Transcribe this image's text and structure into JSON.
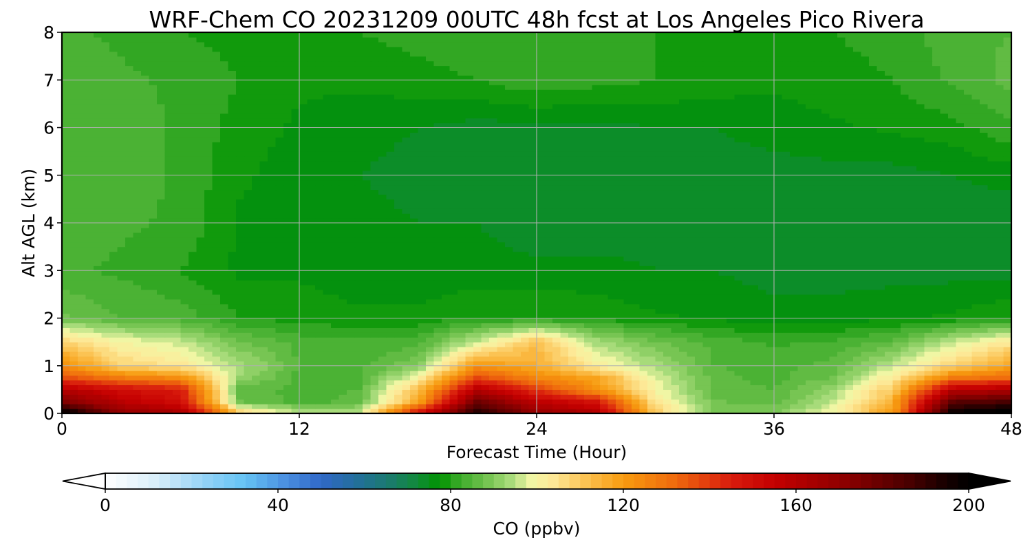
{
  "chart_data": {
    "type": "heatmap",
    "title": "WRF-Chem CO  20231209 00UTC 48h fcst at Los Angeles Pico Rivera",
    "xlabel": "Forecast Time (Hour)",
    "ylabel": "Alt AGL (km)",
    "x_ticks": [
      0,
      12,
      24,
      36,
      48
    ],
    "y_ticks": [
      0,
      1,
      2,
      3,
      4,
      5,
      6,
      7,
      8
    ],
    "xlim": [
      0,
      48
    ],
    "ylim": [
      0,
      8
    ],
    "grid": true,
    "x": [
      0,
      3,
      6,
      9,
      12,
      15,
      18,
      21,
      24,
      27,
      30,
      33,
      36,
      39,
      42,
      45,
      48
    ],
    "y": [
      0,
      0.25,
      0.5,
      0.75,
      1.0,
      1.5,
      2,
      3,
      4,
      5,
      6,
      7,
      8
    ],
    "z": [
      [
        205,
        170,
        165,
        110,
        95,
        96,
        150,
        195,
        170,
        162,
        110,
        90,
        90,
        100,
        120,
        200,
        205
      ],
      [
        175,
        158,
        150,
        88,
        84,
        86,
        118,
        178,
        158,
        148,
        104,
        88,
        86,
        96,
        116,
        182,
        186
      ],
      [
        160,
        150,
        146,
        86,
        84,
        85,
        112,
        160,
        140,
        122,
        100,
        86,
        85,
        92,
        110,
        158,
        162
      ],
      [
        138,
        128,
        124,
        92,
        84,
        84,
        100,
        138,
        125,
        118,
        98,
        86,
        84,
        88,
        103,
        128,
        132
      ],
      [
        124,
        108,
        104,
        94,
        85,
        84,
        90,
        122,
        116,
        102,
        94,
        85,
        84,
        86,
        96,
        108,
        118
      ],
      [
        108,
        100,
        96,
        88,
        84,
        83,
        84,
        96,
        112,
        94,
        88,
        84,
        82,
        83,
        86,
        96,
        104
      ],
      [
        88,
        85,
        84,
        80,
        79,
        78,
        78,
        80,
        80,
        79,
        78,
        77,
        76,
        76,
        77,
        78,
        80
      ],
      [
        83,
        82,
        80,
        77,
        77,
        76,
        76,
        76,
        76,
        76,
        75,
        75,
        74,
        74,
        74,
        74,
        74
      ],
      [
        84,
        83,
        82,
        77,
        76,
        76,
        75,
        75,
        73,
        73,
        74,
        73,
        73,
        73,
        73,
        73,
        73
      ],
      [
        85,
        84,
        82,
        78,
        76,
        75,
        74,
        73,
        73,
        73,
        74,
        74,
        74,
        74,
        74,
        75,
        76
      ],
      [
        85,
        84,
        82,
        79,
        77,
        76,
        75,
        74,
        74,
        74,
        75,
        75,
        76,
        77,
        78,
        79,
        82
      ],
      [
        84,
        83,
        82,
        80,
        78,
        78,
        79,
        80,
        82,
        81,
        80,
        79,
        78,
        79,
        80,
        83,
        86
      ],
      [
        83,
        82,
        80,
        79,
        79,
        80,
        81,
        82,
        81,
        80,
        80,
        79,
        79,
        80,
        81,
        84,
        85
      ]
    ]
  },
  "colorbar": {
    "label": "CO  (ppbv)",
    "ticks": [
      0,
      40,
      80,
      120,
      160,
      200
    ],
    "vmin": 0,
    "vmax": 200,
    "step": 2.5,
    "extend": "both",
    "stops": [
      [
        0,
        "#ffffff"
      ],
      [
        12,
        "#d8eefa"
      ],
      [
        24,
        "#8ed0f6"
      ],
      [
        32,
        "#66c4f5"
      ],
      [
        42,
        "#4a8ee0"
      ],
      [
        50,
        "#3068c8"
      ],
      [
        58,
        "#236f9c"
      ],
      [
        66,
        "#1a7b6c"
      ],
      [
        72,
        "#128a3c"
      ],
      [
        77.5,
        "#009300"
      ],
      [
        82,
        "#3cab2a"
      ],
      [
        88,
        "#70c24d"
      ],
      [
        94,
        "#a9dc7c"
      ],
      [
        99,
        "#f4f7a6"
      ],
      [
        104,
        "#fde795"
      ],
      [
        112,
        "#fbbf4c"
      ],
      [
        120,
        "#f79b0f"
      ],
      [
        132,
        "#ef6a0d"
      ],
      [
        145,
        "#d81b0d"
      ],
      [
        155,
        "#c40000"
      ],
      [
        172,
        "#8a0000"
      ],
      [
        186,
        "#4a0000"
      ],
      [
        195,
        "#150000"
      ],
      [
        200,
        "#000000"
      ]
    ]
  }
}
